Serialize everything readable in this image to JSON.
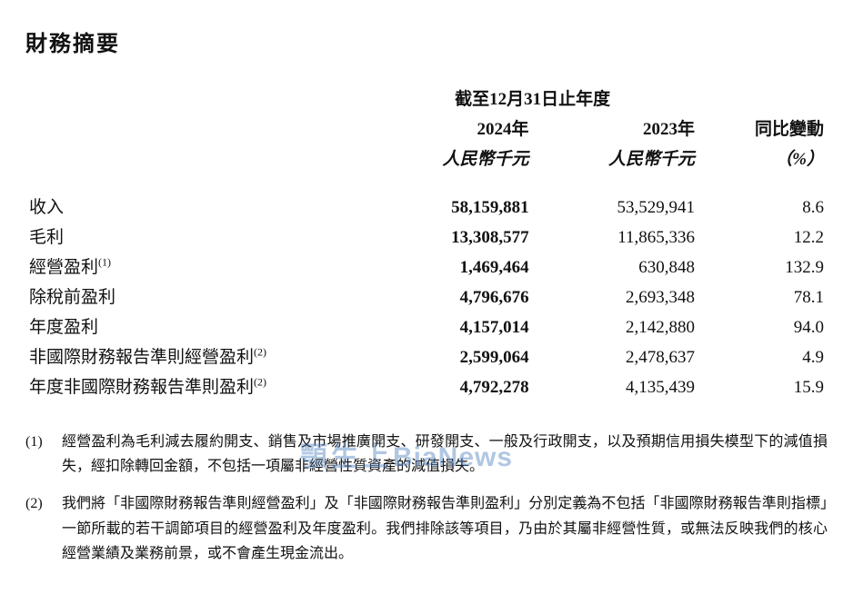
{
  "title": "財務摘要",
  "header": {
    "period_span": "截至12月31日止年度",
    "col_year_current": "2024年",
    "col_year_prior": "2023年",
    "col_change": "同比變動",
    "unit_current": "人民幣千元",
    "unit_prior": "人民幣千元",
    "unit_change": "（%）"
  },
  "rows": [
    {
      "label": "收入",
      "sup": "",
      "cur": "58,159,881",
      "prior": "53,529,941",
      "chg": "8.6"
    },
    {
      "label": "毛利",
      "sup": "",
      "cur": "13,308,577",
      "prior": "11,865,336",
      "chg": "12.2"
    },
    {
      "label": "經營盈利",
      "sup": "(1)",
      "cur": "1,469,464",
      "prior": "630,848",
      "chg": "132.9"
    },
    {
      "label": "除稅前盈利",
      "sup": "",
      "cur": "4,796,676",
      "prior": "2,693,348",
      "chg": "78.1"
    },
    {
      "label": "年度盈利",
      "sup": "",
      "cur": "4,157,014",
      "prior": "2,142,880",
      "chg": "94.0"
    },
    {
      "label": "非國際財務報告準則經營盈利",
      "sup": "(2)",
      "cur": "2,599,064",
      "prior": "2,478,637",
      "chg": "4.9"
    },
    {
      "label": "年度非國際財務報告準則盈利",
      "sup": "(2)",
      "cur": "4,792,278",
      "prior": "4,135,439",
      "chg": "15.9"
    }
  ],
  "notes": [
    {
      "num": "(1)",
      "text": "經營盈利為毛利減去履約開支、銷售及市場推廣開支、研發開支、一般及行政開支，以及預期信用損失模型下的減值損失，經扣除轉回金額，不包括一項屬非經營性質資產的減值損失。"
    },
    {
      "num": "(2)",
      "text": "我們將「非國際財務報告準則經營盈利」及「非國際財務報告準則盈利」分別定義為不包括「非國際財務報告準則指標」一節所載的若干調節項目的經營盈利及年度盈利。我們排除該等項目，乃由於其屬非經營性質，或無法反映我們的核心經營業績及業務前景，或不會產生現金流出。"
    }
  ],
  "watermark": {
    "zh": "顎生上",
    "en": "BiaNews"
  }
}
